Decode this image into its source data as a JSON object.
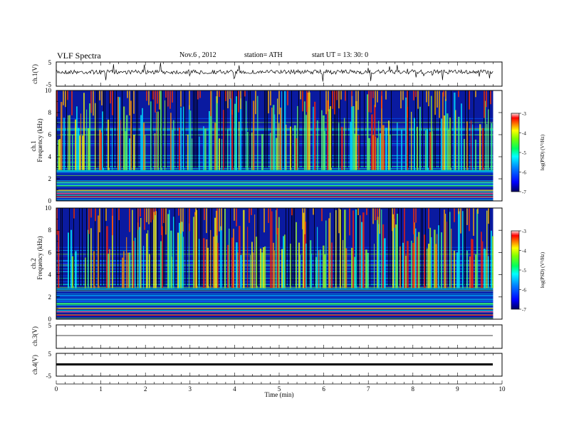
{
  "header": {
    "title": "VLF Spectra",
    "date": "Nov.6 , 2012",
    "station": "station= ATH",
    "start": "start UT = 13: 30: 0"
  },
  "colors": {
    "spectrogram_scale": [
      "#000080",
      "#0000ff",
      "#0080ff",
      "#00ffff",
      "#00ff80",
      "#80ff00",
      "#ffff00",
      "#ff8000",
      "#ff0000",
      "#ffffff"
    ],
    "trace": "#000000"
  },
  "chart_data": [
    {
      "type": "line",
      "panel": "ch1",
      "ylabel": "ch.1(V)",
      "yticks": [
        "5",
        "-5"
      ],
      "ylim": [
        -5,
        5
      ],
      "description_level": "noisy waveform around 0 V with spikes"
    },
    {
      "type": "heatmap",
      "panel": "ch1-spectrogram",
      "ylabel_top": "ch.1",
      "ylabel": "Frequency (kHz)",
      "yticks": [
        "0",
        "2",
        "4",
        "6",
        "8",
        "10"
      ],
      "ylim": [
        0,
        10
      ],
      "colorbar": {
        "label": "log(PSD) (V²/Hz)",
        "ticks": [
          "-3",
          "-4",
          "-5",
          "-6",
          "-7"
        ],
        "range": [
          -7,
          -3
        ]
      }
    },
    {
      "type": "heatmap",
      "panel": "ch2-spectrogram",
      "ylabel_top": "ch.2",
      "ylabel": "Frequency (kHz)",
      "yticks": [
        "0",
        "2",
        "4",
        "6",
        "8",
        "10"
      ],
      "ylim": [
        0,
        10
      ],
      "colorbar": {
        "label": "log(PSD) (V²/Hz)",
        "ticks": [
          "-3",
          "-4",
          "-5",
          "-6",
          "-7"
        ],
        "range": [
          -7,
          -3
        ]
      }
    },
    {
      "type": "line",
      "panel": "ch3",
      "ylabel": "ch.3(V)",
      "yticks": [
        "5",
        "-5"
      ],
      "ylim": [
        -5,
        5
      ]
    },
    {
      "type": "line",
      "panel": "ch4",
      "ylabel": "ch.4(V)",
      "yticks": [
        "5",
        "-5"
      ],
      "ylim": [
        -5,
        5
      ]
    }
  ],
  "xaxis": {
    "label": "Time (min)",
    "ticks": [
      "0",
      "1",
      "2",
      "3",
      "4",
      "5",
      "6",
      "7",
      "8",
      "9",
      "10"
    ],
    "xlim": [
      0,
      10
    ],
    "data_end": 9.8
  }
}
